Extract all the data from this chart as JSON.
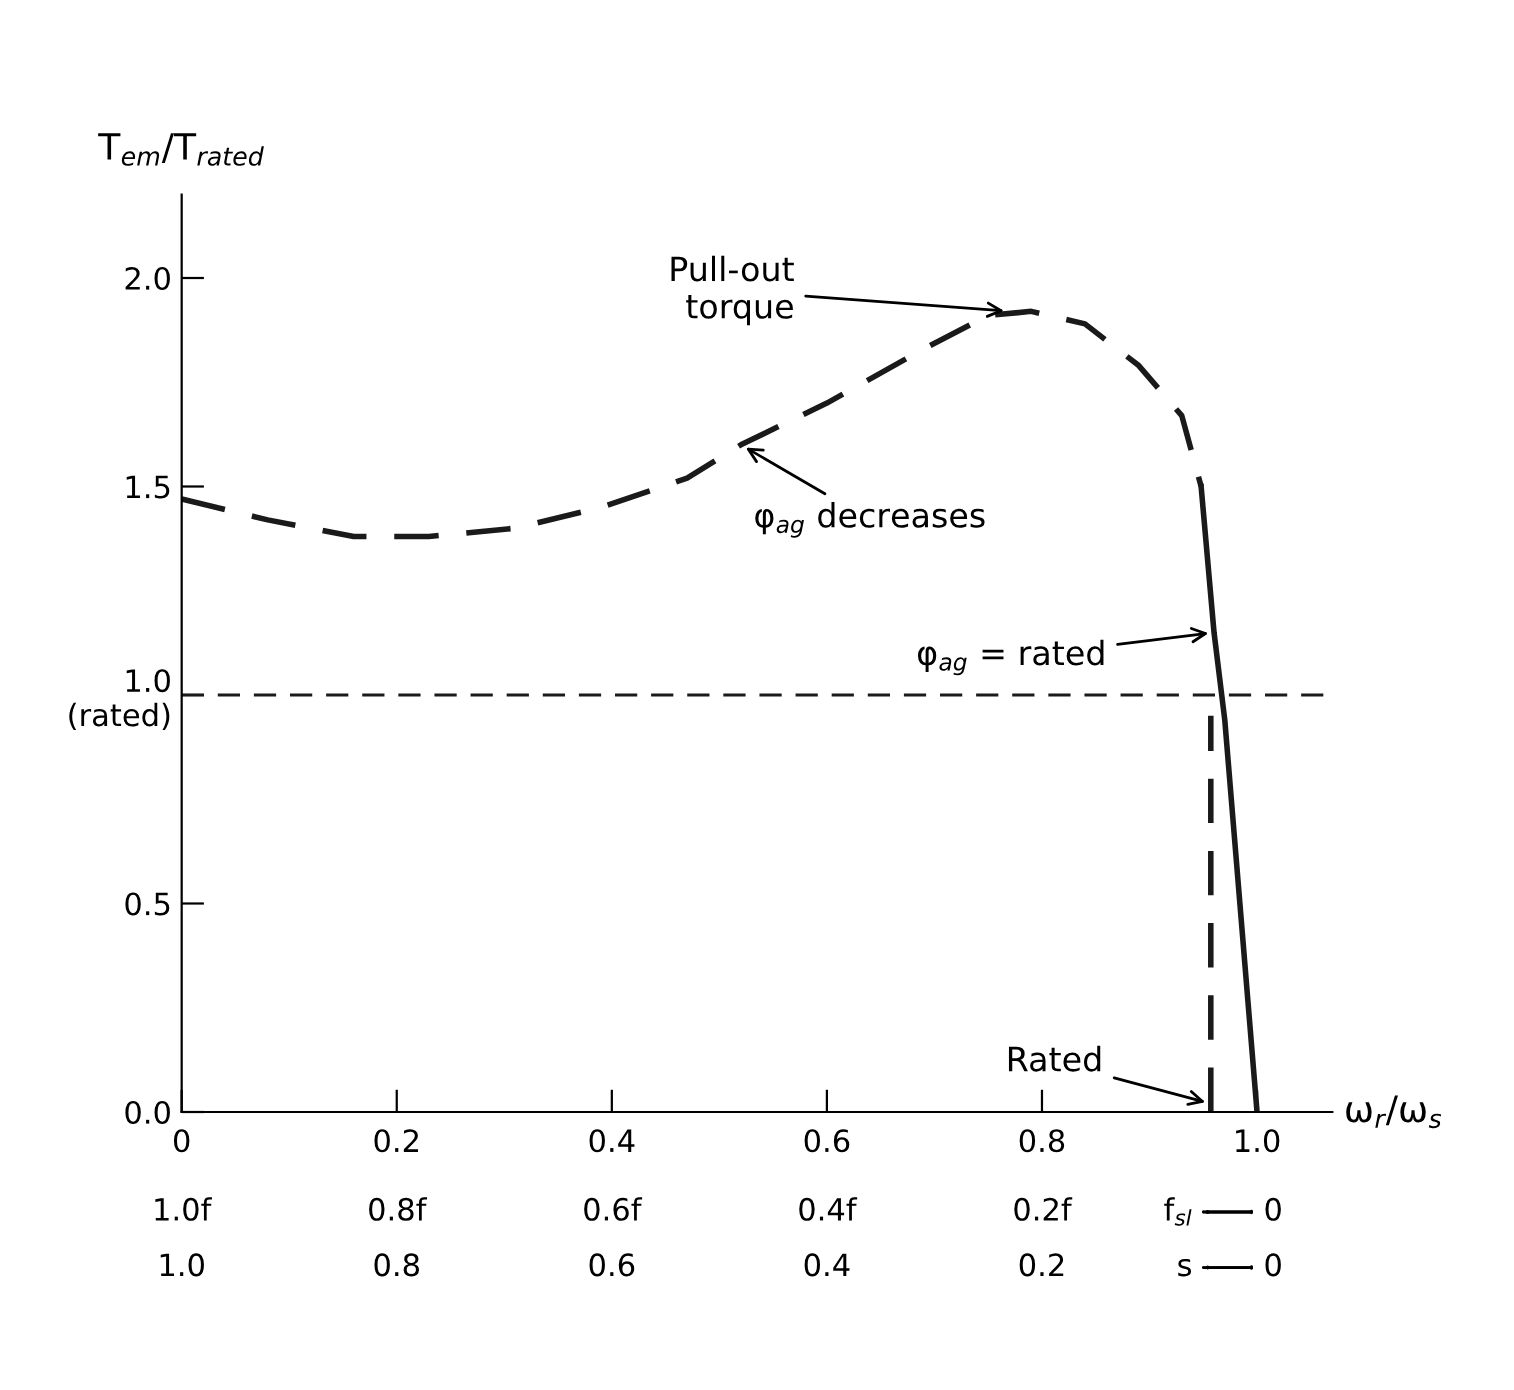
{
  "chart_data": {
    "type": "line",
    "ylabel": "T$_{em}$/T$_{rated}$",
    "xlabel": "ω$_{r}$/ω$_{s}$",
    "series": [
      {
        "color": "#1a1a1a",
        "line_style": "dashed",
        "x": [
          0,
          0.08,
          0.16,
          0.23,
          0.31,
          0.39,
          0.47,
          0.52,
          0.6,
          0.69,
          0.75,
          0.79,
          0.84,
          0.89,
          0.93,
          0.948
        ],
        "values": [
          1.47,
          1.42,
          1.38,
          1.38,
          1.4,
          1.45,
          1.52,
          1.6,
          1.7,
          1.83,
          1.91,
          1.92,
          1.89,
          1.79,
          1.67,
          1.5
        ]
      },
      {
        "color": "#1a1a1a",
        "line_style": "solid",
        "x": [
          0.948,
          0.96,
          0.97,
          1.0
        ],
        "values": [
          1.5,
          1.15,
          0.94,
          0
        ]
      },
      {
        "color": "#1a1a1a",
        "line_style": "dashed",
        "x": [
          0.957,
          0.957
        ],
        "values": [
          0,
          0.95
        ]
      }
    ],
    "ref_lines": [
      {
        "axis": "y",
        "value": 1.0,
        "color": "#1a1a1a",
        "line_style": "dashed"
      }
    ],
    "annotations": [
      {
        "text": "Pull-out\ntorque",
        "x": 0.77,
        "y": 1.92
      },
      {
        "text": "φ$_{ag}$ decreases",
        "x": 0.52,
        "y": 1.6
      },
      {
        "text": "φ$_{ag}$ = rated",
        "x": 0.96,
        "y": 1.15
      },
      {
        "text": "Rated",
        "x": 0.957,
        "y": 0.02
      },
      "f$_{sl}$",
      "s",
      "1.0f",
      "0.8f",
      "0.6f",
      "0.4f",
      "0.2f",
      "0",
      "1.0",
      "0.8",
      "0.6",
      "0.4",
      "0.2",
      "0"
    ],
    "xlim": [
      0,
      1.07
    ],
    "ylim": [
      0,
      2.2
    ],
    "xticks": [
      0,
      0.2,
      0.4,
      0.6,
      0.8,
      {
        "value": 1.0,
        "label": "1.0"
      }
    ],
    "yticks": [
      {
        "value": 0,
        "label": "0.0"
      },
      0.5,
      {
        "value": 1.0,
        "label": "1.0\n(rated)"
      },
      1.5,
      {
        "value": 2.0,
        "label": "2.0"
      }
    ],
    "grid": false,
    "legend": false,
    "marker": "none"
  }
}
